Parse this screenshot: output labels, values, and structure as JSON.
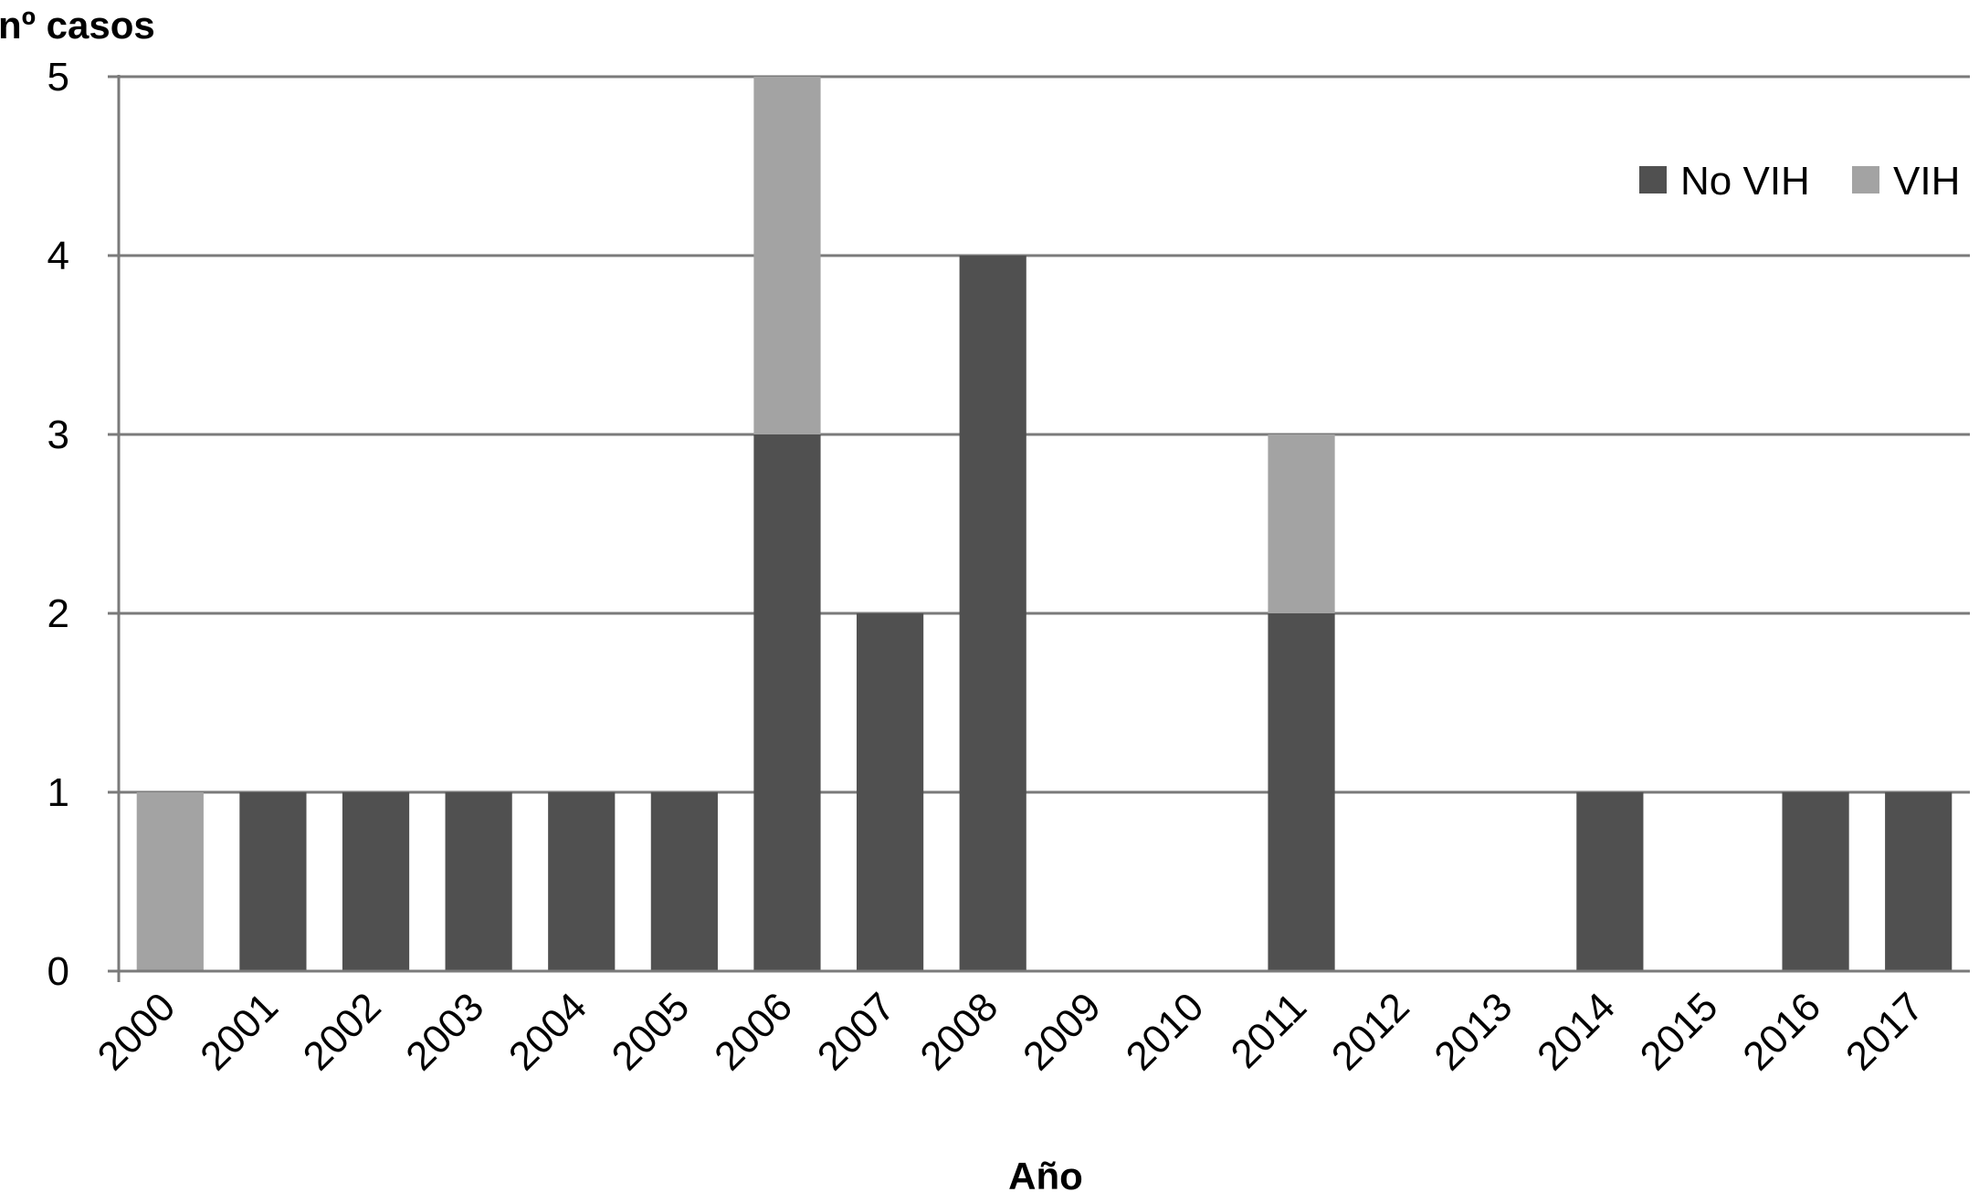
{
  "chart_data": {
    "type": "bar",
    "stacked": true,
    "ylabel": "nº casos",
    "xlabel": "Año",
    "ylim": [
      0,
      5
    ],
    "yticks": [
      0,
      1,
      2,
      3,
      4,
      5
    ],
    "grid": true,
    "legend_position": "top-right",
    "categories": [
      "2000",
      "2001",
      "2002",
      "2003",
      "2004",
      "2005",
      "2006",
      "2007",
      "2008",
      "2009",
      "2010",
      "2011",
      "2012",
      "2013",
      "2014",
      "2015",
      "2016",
      "2017"
    ],
    "series": [
      {
        "name": "No VIH",
        "color": "#505050",
        "values": [
          0,
          1,
          1,
          1,
          1,
          1,
          3,
          2,
          4,
          0,
          0,
          2,
          0,
          0,
          1,
          0,
          1,
          1
        ]
      },
      {
        "name": "VIH",
        "color": "#a3a3a3",
        "values": [
          1,
          0,
          0,
          0,
          0,
          0,
          2,
          0,
          0,
          0,
          0,
          1,
          0,
          0,
          0,
          0,
          0,
          0
        ]
      }
    ]
  }
}
